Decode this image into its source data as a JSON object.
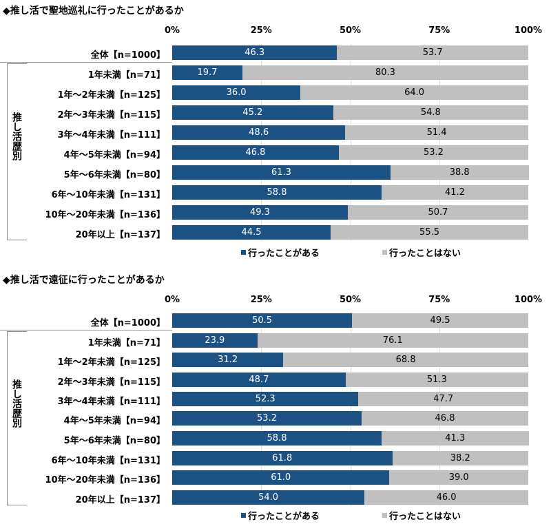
{
  "colors": {
    "yes": "#1b5283",
    "no": "#c0c0c0"
  },
  "chart_data": [
    {
      "type": "bar",
      "stacked": true,
      "orientation": "horizontal",
      "title": "◆推し活で聖地巡礼に行ったことがあるか",
      "xlim": [
        0,
        100
      ],
      "ticks": [
        "0%",
        "25%",
        "50%",
        "75%",
        "100%"
      ],
      "group_label": "推し活歴別",
      "legend_position": "bottom",
      "categories": [
        "全体【n=1000】",
        "1年未満【n=71】",
        "1年～2年未満【n=125】",
        "2年～3年未満【n=115】",
        "3年～4年未満【n=111】",
        "4年～5年未満【n=94】",
        "5年～6年未満【n=80】",
        "6年～10年未満【n=131】",
        "10年～20年未満【n=136】",
        "20年以上【n=137】"
      ],
      "series": [
        {
          "name": "行ったことがある",
          "values": [
            46.3,
            19.7,
            36.0,
            45.2,
            48.6,
            46.8,
            61.3,
            58.8,
            49.3,
            44.5
          ]
        },
        {
          "name": "行ったことはない",
          "values": [
            53.7,
            80.3,
            64.0,
            54.8,
            51.4,
            53.2,
            38.8,
            41.2,
            50.7,
            55.5
          ]
        }
      ]
    },
    {
      "type": "bar",
      "stacked": true,
      "orientation": "horizontal",
      "title": "◆推し活で遠征に行ったことがあるか",
      "xlim": [
        0,
        100
      ],
      "ticks": [
        "0%",
        "25%",
        "50%",
        "75%",
        "100%"
      ],
      "group_label": "推し活歴別",
      "legend_position": "bottom",
      "categories": [
        "全体【n=1000】",
        "1年未満【n=71】",
        "1年～2年未満【n=125】",
        "2年～3年未満【n=115】",
        "3年～4年未満【n=111】",
        "4年～5年未満【n=94】",
        "5年～6年未満【n=80】",
        "6年～10年未満【n=131】",
        "10年～20年未満【n=136】",
        "20年以上【n=137】"
      ],
      "series": [
        {
          "name": "行ったことがある",
          "values": [
            50.5,
            23.9,
            31.2,
            48.7,
            52.3,
            53.2,
            58.8,
            61.8,
            61.0,
            54.0
          ]
        },
        {
          "name": "行ったことはない",
          "values": [
            49.5,
            76.1,
            68.8,
            51.3,
            47.7,
            46.8,
            41.3,
            38.2,
            39.0,
            46.0
          ]
        }
      ]
    }
  ]
}
